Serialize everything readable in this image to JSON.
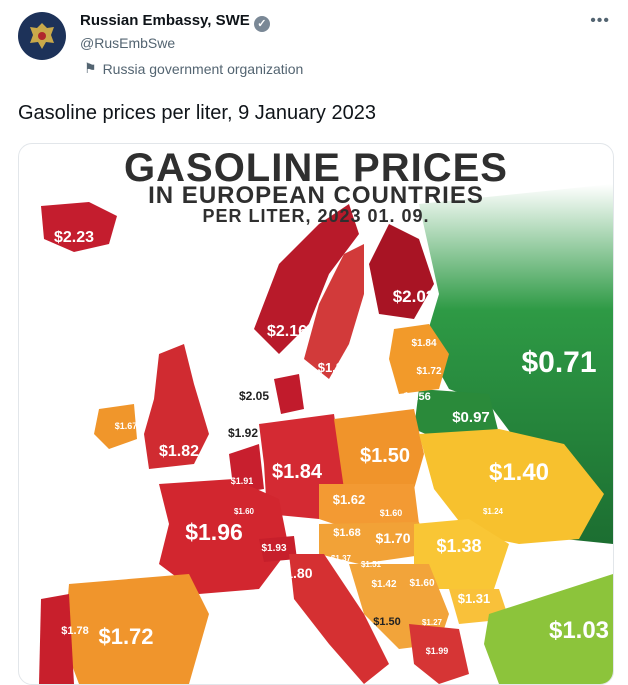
{
  "tweet": {
    "author_name": "Russian Embassy, SWE",
    "handle": "@RusEmbSwe",
    "account_label": "Russia government organization",
    "more_icon": "more-horizontal-icon",
    "text": "Gasoline prices per liter, 9 January 2023"
  },
  "map": {
    "title_line1": "GASOLINE PRICES",
    "title_line2": "IN EUROPEAN COUNTRIES",
    "title_line3": "PER LITER, 2023 01. 09.",
    "colors": {
      "high": "#c0182a",
      "mid": "#f0a12d",
      "low": "#1e7d34"
    },
    "prices": [
      {
        "country": "Iceland",
        "label": "$2.23"
      },
      {
        "country": "Finland",
        "label": "$2.02"
      },
      {
        "country": "Norway",
        "label": "$2.16"
      },
      {
        "country": "Sweden",
        "label": "$1.82"
      },
      {
        "country": "Russia",
        "label": "$0.71"
      },
      {
        "country": "Estonia",
        "label": "$1.84"
      },
      {
        "country": "Latvia",
        "label": "$1.72"
      },
      {
        "country": "Lithuania",
        "label": "$1.56"
      },
      {
        "country": "Belarus",
        "label": "$0.97"
      },
      {
        "country": "Denmark",
        "label": "$2.05"
      },
      {
        "country": "Ireland",
        "label": "$1.67"
      },
      {
        "country": "United Kingdom",
        "label": "$1.82"
      },
      {
        "country": "Netherlands",
        "label": "$1.92"
      },
      {
        "country": "Belgium",
        "label": "$1.91"
      },
      {
        "country": "Luxembourg",
        "label": "$1.60"
      },
      {
        "country": "Germany",
        "label": "$1.84"
      },
      {
        "country": "Poland",
        "label": "$1.50"
      },
      {
        "country": "Ukraine",
        "label": "$1.40"
      },
      {
        "country": "Czechia",
        "label": "$1.62"
      },
      {
        "country": "Slovakia",
        "label": "$1.60"
      },
      {
        "country": "Moldova",
        "label": "$1.24"
      },
      {
        "country": "France",
        "label": "$1.96"
      },
      {
        "country": "Switzerland",
        "label": "$1.93"
      },
      {
        "country": "Austria",
        "label": "$1.68"
      },
      {
        "country": "Hungary",
        "label": "$1.70"
      },
      {
        "country": "Romania",
        "label": "$1.38"
      },
      {
        "country": "Slovenia",
        "label": "$1.37"
      },
      {
        "country": "Croatia",
        "label": "$1.51"
      },
      {
        "country": "Bosnia",
        "label": "$1.42"
      },
      {
        "country": "Serbia",
        "label": "$1.60"
      },
      {
        "country": "Bulgaria",
        "label": "$1.31"
      },
      {
        "country": "Italy",
        "label": "$1.80"
      },
      {
        "country": "Portugal",
        "label": "$1.78"
      },
      {
        "country": "Spain",
        "label": "$1.72"
      },
      {
        "country": "Montenegro",
        "label": "$1.50"
      },
      {
        "country": "North Macedonia",
        "label": "$1.27"
      },
      {
        "country": "Greece",
        "label": "$1.99"
      },
      {
        "country": "Turkey",
        "label": "$1.03"
      }
    ]
  }
}
